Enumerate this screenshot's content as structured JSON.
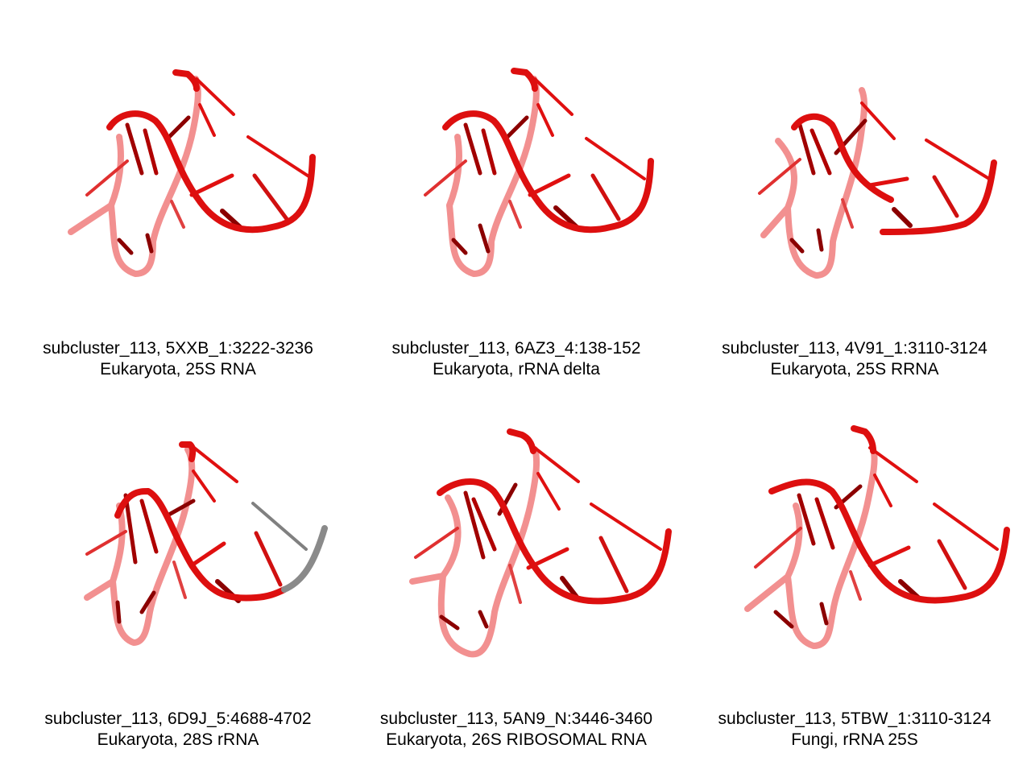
{
  "colors": {
    "backbone_front": "#e01010",
    "backbone_back": "#f08080",
    "base_dark": "#8b0000",
    "highlight_gray": "#808080"
  },
  "panels": [
    {
      "line1": "subcluster_113, 5XXB_1:3222-3236",
      "line2": "Eukaryota, 25S RNA",
      "variant": "standard"
    },
    {
      "line1": "subcluster_113, 6AZ3_4:138-152",
      "line2": "Eukaryota, rRNA delta",
      "variant": "standard"
    },
    {
      "line1": "subcluster_113, 4V91_1:3110-3124",
      "line2": "Eukaryota, 25S RRNA",
      "variant": "broken"
    },
    {
      "line1": "subcluster_113, 6D9J_5:4688-4702",
      "line2": "Eukaryota, 28S rRNA",
      "variant": "gray-tail"
    },
    {
      "line1": "subcluster_113, 5AN9_N:3446-3460",
      "line2": "Eukaryota, 26S RIBOSOMAL RNA",
      "variant": "standard"
    },
    {
      "line1": "subcluster_113, 5TBW_1:3110-3124",
      "line2": "Fungi, rRNA 25S",
      "variant": "standard"
    }
  ]
}
